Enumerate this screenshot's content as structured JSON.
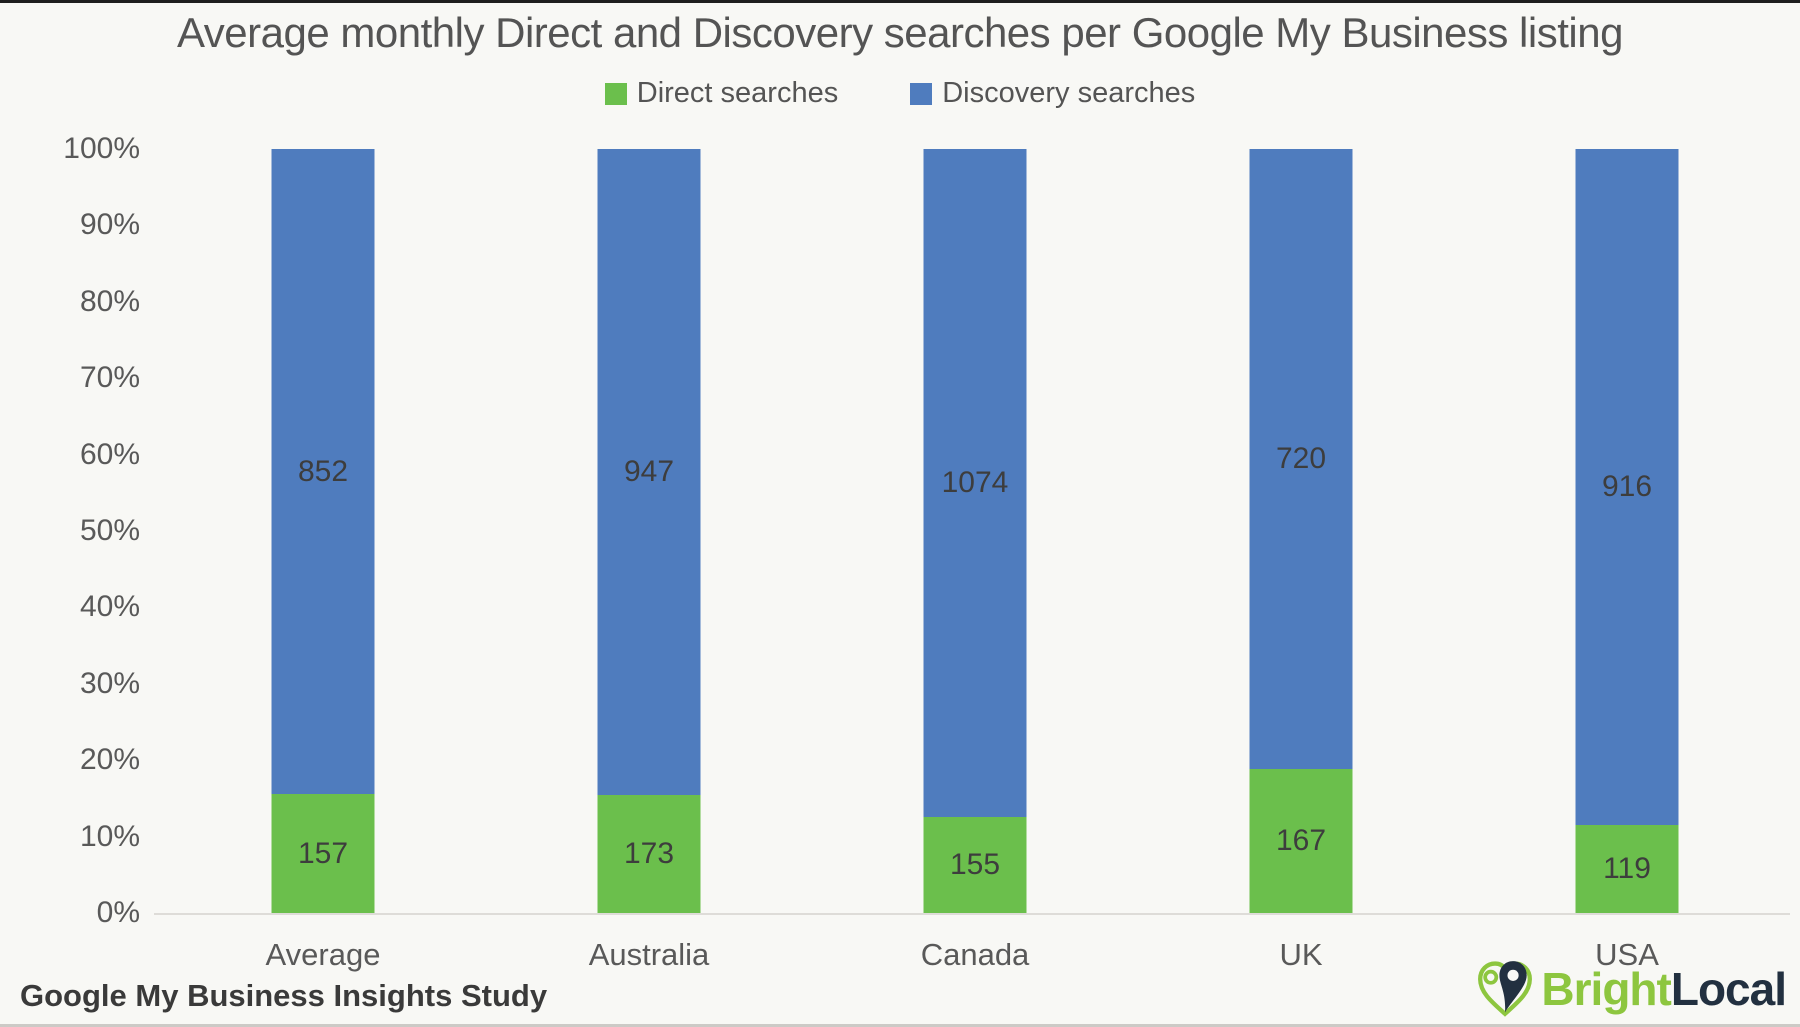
{
  "chart_data": {
    "type": "bar",
    "stacked_percent": true,
    "title": "Average monthly Direct and Discovery searches per Google My Business listing",
    "categories": [
      "Average",
      "Australia",
      "Canada",
      "UK",
      "USA"
    ],
    "series": [
      {
        "name": "Direct searches",
        "color": "#6bbf4c",
        "values": [
          157,
          173,
          155,
          167,
          119
        ]
      },
      {
        "name": "Discovery searches",
        "color": "#4f7cbe",
        "values": [
          852,
          947,
          1074,
          720,
          916
        ]
      }
    ],
    "y_axis": {
      "ticks": [
        "0%",
        "10%",
        "20%",
        "30%",
        "40%",
        "50%",
        "60%",
        "70%",
        "80%",
        "90%",
        "100%"
      ],
      "min": 0,
      "max": 100,
      "unit": "%"
    },
    "legend_position": "top",
    "grid": "none",
    "value_label_color": "#3d3d3d"
  },
  "footer": {
    "source": "Google My Business Insights Study",
    "brand": {
      "part1": "Bright",
      "part2": "Local",
      "part1_color": "#8dc63f",
      "part2_color": "#223040"
    }
  }
}
